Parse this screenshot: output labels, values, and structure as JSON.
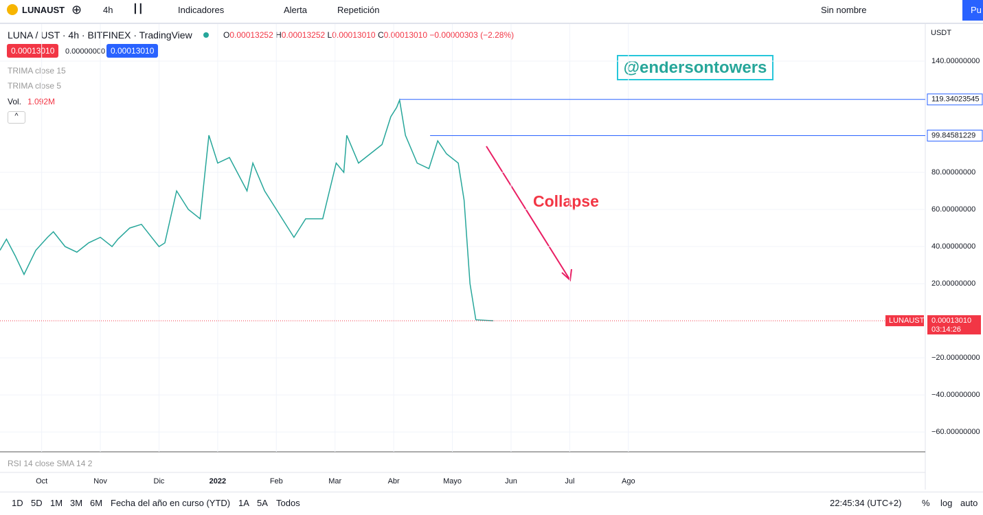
{
  "toolbar": {
    "symbol": "LUNAUST",
    "interval": "4h",
    "indicators": "Indicadores",
    "alert": "Alerta",
    "replay": "Repetición",
    "layout": "Sin nombre",
    "publish": "Pu"
  },
  "legend": {
    "title": "LUNA / UST · 4h · BITFINEX · TradingView",
    "o_key": "O",
    "o": "0.00013252",
    "h_key": "H",
    "h": "0.00013252",
    "l_key": "L",
    "l": "0.00013010",
    "c_key": "C",
    "c": "0.00013010",
    "change": "−0.00000303 (−2.28%)",
    "sell": "0.00013010",
    "spread": "0.00000000",
    "buy": "0.00013010",
    "trima15": "TRIMA close 15",
    "trima5": "TRIMA close 5",
    "vol_key": "Vol.",
    "vol": "1.092M",
    "rsi": "RSI 14 close SMA 14 2"
  },
  "watermark": "@endersontowers",
  "annotation": "Collapse",
  "currency": "USDT",
  "chart_data": {
    "type": "line",
    "color": "#26a69a",
    "x": [
      -0.71,
      -0.6,
      -0.45,
      -0.3,
      -0.1,
      0.1,
      0.2,
      0.4,
      0.6,
      0.8,
      1.0,
      1.2,
      1.3,
      1.5,
      1.7,
      1.9,
      2.0,
      2.1,
      2.3,
      2.5,
      2.7,
      2.85,
      3.0,
      3.2,
      3.5,
      3.6,
      3.8,
      4.0,
      4.2,
      4.3,
      4.5,
      4.7,
      4.79,
      5.02,
      5.15,
      5.2,
      5.4,
      5.6,
      5.8,
      5.95,
      6.05,
      6.1,
      6.2,
      6.4,
      6.6,
      6.75,
      6.9,
      7.1,
      7.2,
      7.3,
      7.4,
      7.7
    ],
    "values": [
      38,
      44,
      35,
      25,
      38,
      45,
      48,
      40,
      37,
      42,
      45,
      40,
      44,
      50,
      52,
      44,
      40,
      42,
      70,
      60,
      55,
      100,
      85,
      88,
      70,
      85,
      70,
      60,
      50,
      45,
      55,
      55,
      55,
      85,
      80,
      100,
      85,
      90,
      95,
      110,
      115,
      119,
      100,
      85,
      82,
      97,
      90,
      85,
      65,
      20,
      0.5,
      0.0001
    ],
    "xlim": [
      -0.71,
      15.06
    ],
    "ylim": [
      -70.7,
      160
    ],
    "xticks": [
      {
        "value": 0,
        "label": "Oct"
      },
      {
        "value": 1,
        "label": "Nov"
      },
      {
        "value": 2,
        "label": "Dic"
      },
      {
        "value": 3,
        "label": "2022"
      },
      {
        "value": 4,
        "label": "Feb"
      },
      {
        "value": 5,
        "label": "Mar"
      },
      {
        "value": 6,
        "label": "Abr"
      },
      {
        "value": 7,
        "label": "Mayo"
      },
      {
        "value": 8,
        "label": "Jun"
      },
      {
        "value": 9,
        "label": "Jul"
      },
      {
        "value": 10,
        "label": "Ago"
      }
    ],
    "yticks": [
      {
        "value": 140,
        "label": "140.00000000"
      },
      {
        "value": 80,
        "label": "80.00000000"
      },
      {
        "value": 60,
        "label": "60.00000000"
      },
      {
        "value": 40,
        "label": "40.00000000"
      },
      {
        "value": 20,
        "label": "20.00000000"
      },
      {
        "value": -20,
        "label": "−20.00000000"
      },
      {
        "value": -40,
        "label": "−40.00000000"
      },
      {
        "value": -60,
        "label": "−60.00000000"
      }
    ],
    "levels": [
      {
        "value": 119.34023545,
        "from": 6.1,
        "color": "#2962ff"
      },
      {
        "value": 99.84581229,
        "from": 6.62,
        "color": "#2962ff"
      }
    ],
    "last_price": {
      "value": 0.0001301,
      "label": "0.00013010",
      "name": "LUNAUST",
      "countdown": "03:14:26",
      "color": "#f23645"
    },
    "grid": true
  },
  "ranges": [
    "1D",
    "5D",
    "1M",
    "3M",
    "6M",
    "Fecha del año en curso (YTD)",
    "1A",
    "5A",
    "Todos"
  ],
  "clock": "22:45:34 (UTC+2)",
  "scale_modes": [
    "%",
    "log",
    "auto"
  ]
}
